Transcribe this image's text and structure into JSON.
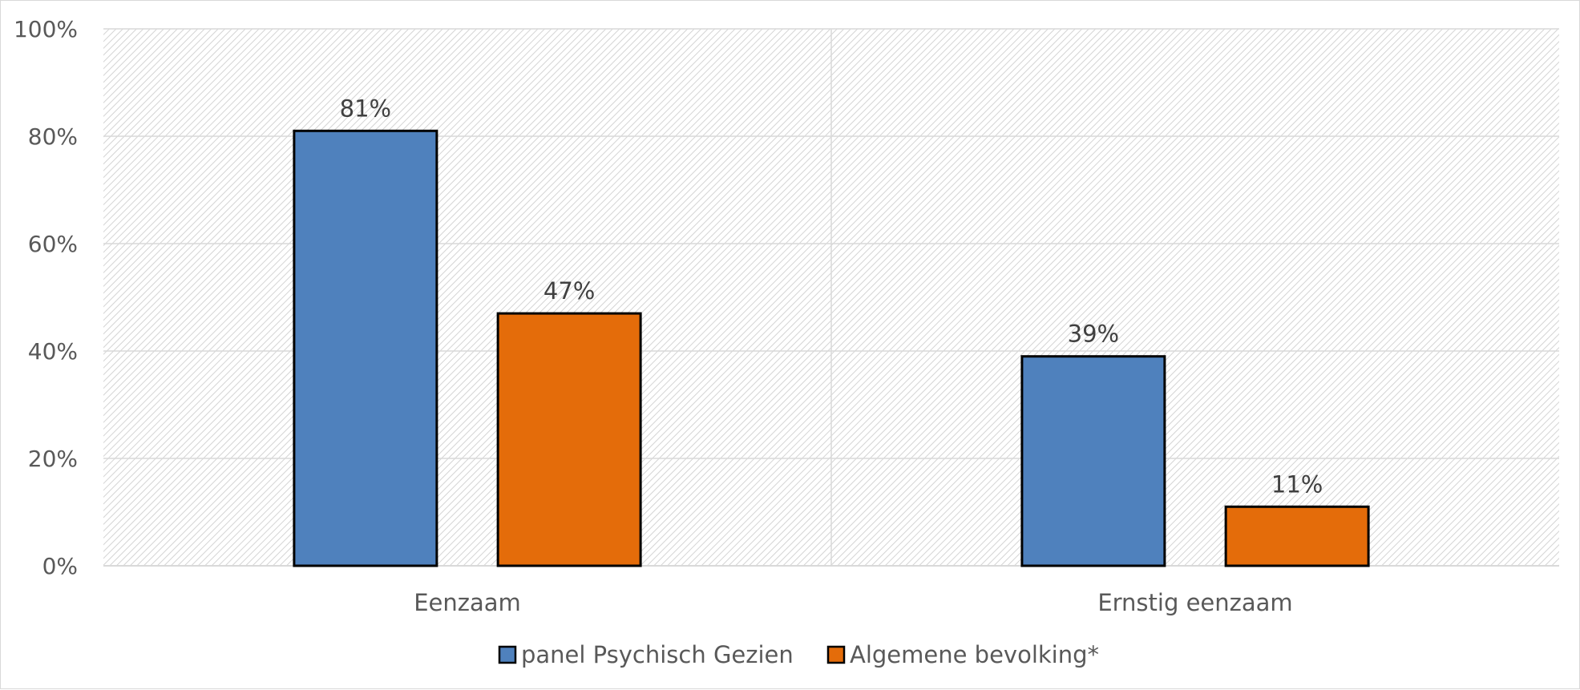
{
  "chart_data": {
    "type": "bar",
    "categories": [
      "Eenzaam",
      "Ernstig eenzaam"
    ],
    "series": [
      {
        "name": "panel Psychisch Gezien",
        "values": [
          81,
          39
        ],
        "color": "#4f81bd"
      },
      {
        "name": "Algemene bevolking*",
        "values": [
          47,
          11
        ],
        "color": "#e46c0a"
      }
    ],
    "data_labels": [
      [
        "81%",
        "39%"
      ],
      [
        "47%",
        "11%"
      ]
    ],
    "ylim": [
      0,
      100
    ],
    "yticks": [
      0,
      20,
      40,
      60,
      80,
      100
    ],
    "ytick_labels": [
      "0%",
      "20%",
      "40%",
      "60%",
      "80%",
      "100%"
    ],
    "title": "",
    "xlabel": "",
    "ylabel": "",
    "grid": true,
    "legend_position": "bottom",
    "plot_background": "diagonal hatch pattern"
  }
}
